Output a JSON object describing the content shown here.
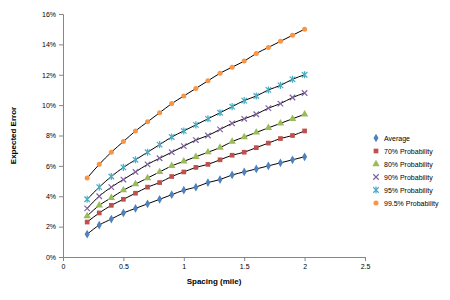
{
  "chart_data": {
    "type": "line",
    "x_label": "Spacing (mile)",
    "y_label": "Expected Error",
    "x": [
      0.2,
      0.3,
      0.4,
      0.5,
      0.6,
      0.7,
      0.8,
      0.9,
      1.0,
      1.1,
      1.2,
      1.3,
      1.4,
      1.5,
      1.6,
      1.7,
      1.8,
      1.9,
      2.0
    ],
    "series": [
      {
        "name": "Average",
        "color": "#4f81bd",
        "marker": "diamond",
        "line_style": "solid",
        "values": [
          1.5,
          2.1,
          2.5,
          2.9,
          3.2,
          3.5,
          3.8,
          4.1,
          4.4,
          4.6,
          4.9,
          5.1,
          5.4,
          5.6,
          5.8,
          6.0,
          6.2,
          6.4,
          6.6
        ]
      },
      {
        "name": "70% Probability",
        "color": "#c0504d",
        "marker": "square",
        "line_style": "solid",
        "values": [
          2.3,
          2.9,
          3.4,
          3.8,
          4.2,
          4.6,
          4.9,
          5.3,
          5.6,
          5.9,
          6.1,
          6.4,
          6.7,
          6.9,
          7.2,
          7.5,
          7.8,
          8.0,
          8.3
        ]
      },
      {
        "name": "80% Probability",
        "color": "#9bbb59",
        "marker": "triangle",
        "line_style": "solid",
        "values": [
          2.7,
          3.4,
          3.9,
          4.4,
          4.8,
          5.2,
          5.6,
          6.0,
          6.3,
          6.6,
          6.9,
          7.2,
          7.6,
          7.9,
          8.2,
          8.5,
          8.8,
          9.1,
          9.4
        ]
      },
      {
        "name": "90% Probability",
        "color": "#8064a2",
        "marker": "x",
        "line_style": "solid",
        "values": [
          3.2,
          4.0,
          4.6,
          5.1,
          5.6,
          6.1,
          6.5,
          6.9,
          7.3,
          7.7,
          8.0,
          8.4,
          8.8,
          9.1,
          9.4,
          9.8,
          10.1,
          10.5,
          10.8
        ]
      },
      {
        "name": "95% Probability",
        "color": "#4bacc6",
        "marker": "star",
        "line_style": "solid",
        "values": [
          3.8,
          4.6,
          5.3,
          5.9,
          6.4,
          6.9,
          7.4,
          7.9,
          8.3,
          8.7,
          9.1,
          9.5,
          9.9,
          10.3,
          10.6,
          11.0,
          11.3,
          11.7,
          12.0
        ]
      },
      {
        "name": "99.5% Probability",
        "color": "#f79646",
        "marker": "circle",
        "line_style": "solid",
        "values": [
          5.2,
          6.1,
          6.9,
          7.6,
          8.3,
          8.9,
          9.5,
          10.1,
          10.6,
          11.1,
          11.6,
          12.1,
          12.5,
          12.9,
          13.4,
          13.8,
          14.2,
          14.6,
          15.0
        ]
      }
    ],
    "xlim": [
      0,
      2.5
    ],
    "xticks": [
      0,
      0.5,
      1,
      1.5,
      2,
      2.5
    ],
    "ylim": [
      0,
      16
    ],
    "yticks": [
      {
        "value": 0,
        "label": "0%"
      },
      {
        "value": 2,
        "label": "2%"
      },
      {
        "value": 4,
        "label": "4%"
      },
      {
        "value": 6,
        "label": "6%"
      },
      {
        "value": 8,
        "label": "8%"
      },
      {
        "value": 10,
        "label": "10%"
      },
      {
        "value": 12,
        "label": "12%"
      },
      {
        "value": 14,
        "label": "14%"
      },
      {
        "value": 16,
        "label": "16%"
      }
    ],
    "grid": false,
    "legend": "right"
  }
}
